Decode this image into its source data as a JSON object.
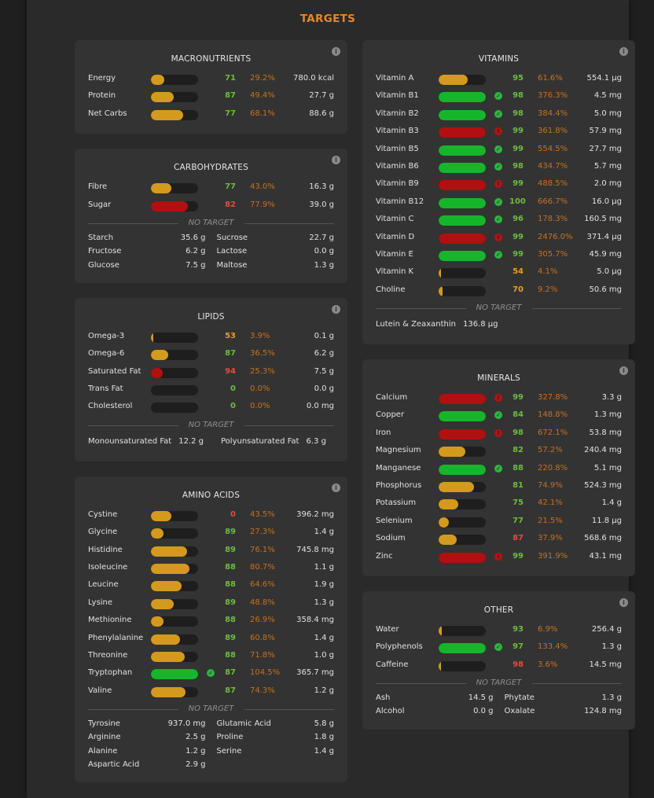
{
  "title": "TARGETS",
  "colors": {
    "accent": "#e3872b",
    "green": "#17b52c",
    "orange": "#d39a1e",
    "red": "#b01010"
  },
  "macronutrients": {
    "title": "MACRONUTRIENTS",
    "rows": [
      {
        "label": "Energy",
        "fill_percent": 29,
        "bar": "orange",
        "status": "none",
        "score": "71",
        "score_color": "green",
        "pct": "29.2%",
        "amount": "780.0 kcal"
      },
      {
        "label": "Protein",
        "fill_percent": 49,
        "bar": "orange",
        "status": "none",
        "score": "87",
        "score_color": "green",
        "pct": "49.4%",
        "amount": "27.7 g"
      },
      {
        "label": "Net Carbs",
        "fill_percent": 68,
        "bar": "orange",
        "status": "none",
        "score": "77",
        "score_color": "green",
        "pct": "68.1%",
        "amount": "88.6 g"
      }
    ]
  },
  "carbohydrates": {
    "title": "CARBOHYDRATES",
    "rows": [
      {
        "label": "Fibre",
        "fill_percent": 43,
        "bar": "orange",
        "status": "none",
        "score": "77",
        "score_color": "green",
        "pct": "43.0%",
        "amount": "16.3 g"
      },
      {
        "label": "Sugar",
        "fill_percent": 78,
        "bar": "red",
        "status": "none",
        "score": "82",
        "score_color": "red",
        "pct": "77.9%",
        "amount": "39.0 g"
      }
    ],
    "no_target_label": "NO TARGET",
    "no_target": [
      {
        "label": "Starch",
        "value": "35.6 g"
      },
      {
        "label": "Sucrose",
        "value": "22.7 g"
      },
      {
        "label": "Fructose",
        "value": "6.2 g"
      },
      {
        "label": "Lactose",
        "value": "0.0 g"
      },
      {
        "label": "Glucose",
        "value": "7.5 g"
      },
      {
        "label": "Maltose",
        "value": "1.3 g"
      }
    ]
  },
  "lipids": {
    "title": "LIPIDS",
    "rows": [
      {
        "label": "Omega-3",
        "fill_percent": 4,
        "bar": "orange",
        "status": "none",
        "score": "53",
        "score_color": "orange",
        "pct": "3.9%",
        "amount": "0.1 g"
      },
      {
        "label": "Omega-6",
        "fill_percent": 37,
        "bar": "orange",
        "status": "none",
        "score": "87",
        "score_color": "green",
        "pct": "36.5%",
        "amount": "6.2 g"
      },
      {
        "label": "Saturated Fat",
        "fill_percent": 25,
        "bar": "red",
        "status": "none",
        "score": "94",
        "score_color": "red",
        "pct": "25.3%",
        "amount": "7.5 g"
      },
      {
        "label": "Trans Fat",
        "fill_percent": 0,
        "bar": "orange",
        "status": "none",
        "score": "0",
        "score_color": "green",
        "pct": "0.0%",
        "amount": "0.0 g"
      },
      {
        "label": "Cholesterol",
        "fill_percent": 0,
        "bar": "orange",
        "status": "none",
        "score": "0",
        "score_color": "green",
        "pct": "0.0%",
        "amount": "0.0 mg"
      }
    ],
    "no_target_label": "NO TARGET",
    "no_target": [
      {
        "label": "Monounsaturated Fat",
        "value": "12.2 g"
      },
      {
        "label": "Polyunsaturated Fat",
        "value": "6.3 g"
      }
    ]
  },
  "amino_acids": {
    "title": "AMINO ACIDS",
    "rows": [
      {
        "label": "Cystine",
        "fill_percent": 43,
        "bar": "orange",
        "status": "none",
        "score": "0",
        "score_color": "red",
        "pct": "43.5%",
        "amount": "396.2 mg"
      },
      {
        "label": "Glycine",
        "fill_percent": 27,
        "bar": "orange",
        "status": "none",
        "score": "89",
        "score_color": "green",
        "pct": "27.3%",
        "amount": "1.4 g"
      },
      {
        "label": "Histidine",
        "fill_percent": 76,
        "bar": "orange",
        "status": "none",
        "score": "89",
        "score_color": "green",
        "pct": "76.1%",
        "amount": "745.8 mg"
      },
      {
        "label": "Isoleucine",
        "fill_percent": 81,
        "bar": "orange",
        "status": "none",
        "score": "88",
        "score_color": "green",
        "pct": "80.7%",
        "amount": "1.1 g"
      },
      {
        "label": "Leucine",
        "fill_percent": 65,
        "bar": "orange",
        "status": "none",
        "score": "88",
        "score_color": "green",
        "pct": "64.6%",
        "amount": "1.9 g"
      },
      {
        "label": "Lysine",
        "fill_percent": 49,
        "bar": "orange",
        "status": "none",
        "score": "89",
        "score_color": "green",
        "pct": "48.8%",
        "amount": "1.3 g"
      },
      {
        "label": "Methionine",
        "fill_percent": 27,
        "bar": "orange",
        "status": "none",
        "score": "88",
        "score_color": "green",
        "pct": "26.9%",
        "amount": "358.4 mg"
      },
      {
        "label": "Phenylalanine",
        "fill_percent": 61,
        "bar": "orange",
        "status": "none",
        "score": "89",
        "score_color": "green",
        "pct": "60.8%",
        "amount": "1.4 g"
      },
      {
        "label": "Threonine",
        "fill_percent": 72,
        "bar": "orange",
        "status": "none",
        "score": "88",
        "score_color": "green",
        "pct": "71.8%",
        "amount": "1.0 g"
      },
      {
        "label": "Tryptophan",
        "fill_percent": 100,
        "bar": "green",
        "status": "green",
        "score": "87",
        "score_color": "green",
        "pct": "104.5%",
        "amount": "365.7 mg"
      },
      {
        "label": "Valine",
        "fill_percent": 74,
        "bar": "orange",
        "status": "none",
        "score": "87",
        "score_color": "green",
        "pct": "74.3%",
        "amount": "1.2 g"
      }
    ],
    "no_target_label": "NO TARGET",
    "no_target": [
      {
        "label": "Tyrosine",
        "value": "937.0 mg"
      },
      {
        "label": "Glutamic Acid",
        "value": "5.8 g"
      },
      {
        "label": "Arginine",
        "value": "2.5 g"
      },
      {
        "label": "Proline",
        "value": "1.8 g"
      },
      {
        "label": "Alanine",
        "value": "1.2 g"
      },
      {
        "label": "Serine",
        "value": "1.4 g"
      },
      {
        "label": "Aspartic Acid",
        "value": "2.9 g"
      }
    ]
  },
  "vitamins": {
    "title": "VITAMINS",
    "rows": [
      {
        "label": "Vitamin A",
        "fill_percent": 62,
        "bar": "orange",
        "status": "none",
        "score": "95",
        "score_color": "green",
        "pct": "61.6%",
        "amount": "554.1 µg"
      },
      {
        "label": "Vitamin B1",
        "fill_percent": 100,
        "bar": "green",
        "status": "green",
        "score": "98",
        "score_color": "green",
        "pct": "376.3%",
        "amount": "4.5 mg"
      },
      {
        "label": "Vitamin B2",
        "fill_percent": 100,
        "bar": "green",
        "status": "green",
        "score": "98",
        "score_color": "green",
        "pct": "384.4%",
        "amount": "5.0 mg"
      },
      {
        "label": "Vitamin B3",
        "fill_percent": 100,
        "bar": "red",
        "status": "red",
        "score": "99",
        "score_color": "green",
        "pct": "361.8%",
        "amount": "57.9 mg"
      },
      {
        "label": "Vitamin B5",
        "fill_percent": 100,
        "bar": "green",
        "status": "green",
        "score": "99",
        "score_color": "green",
        "pct": "554.5%",
        "amount": "27.7 mg"
      },
      {
        "label": "Vitamin B6",
        "fill_percent": 100,
        "bar": "green",
        "status": "green",
        "score": "98",
        "score_color": "green",
        "pct": "434.7%",
        "amount": "5.7 mg"
      },
      {
        "label": "Vitamin B9",
        "fill_percent": 100,
        "bar": "red",
        "status": "red",
        "score": "99",
        "score_color": "green",
        "pct": "488.5%",
        "amount": "2.0 mg"
      },
      {
        "label": "Vitamin B12",
        "fill_percent": 100,
        "bar": "green",
        "status": "green",
        "score": "100",
        "score_color": "green",
        "pct": "666.7%",
        "amount": "16.0 µg"
      },
      {
        "label": "Vitamin C",
        "fill_percent": 100,
        "bar": "green",
        "status": "green",
        "score": "96",
        "score_color": "green",
        "pct": "178.3%",
        "amount": "160.5 mg"
      },
      {
        "label": "Vitamin D",
        "fill_percent": 100,
        "bar": "red",
        "status": "red",
        "score": "99",
        "score_color": "green",
        "pct": "2476.0%",
        "amount": "371.4 µg"
      },
      {
        "label": "Vitamin E",
        "fill_percent": 100,
        "bar": "green",
        "status": "green",
        "score": "99",
        "score_color": "green",
        "pct": "305.7%",
        "amount": "45.9 mg"
      },
      {
        "label": "Vitamin K",
        "fill_percent": 4,
        "bar": "orange",
        "status": "none",
        "score": "54",
        "score_color": "orange",
        "pct": "4.1%",
        "amount": "5.0 µg"
      },
      {
        "label": "Choline",
        "fill_percent": 9,
        "bar": "orange",
        "status": "none",
        "score": "70",
        "score_color": "orange",
        "pct": "9.2%",
        "amount": "50.6 mg"
      }
    ],
    "no_target_label": "NO TARGET",
    "no_target": [
      {
        "label": "Lutein & Zeaxanthin",
        "value": "136.8 µg"
      }
    ]
  },
  "minerals": {
    "title": "MINERALS",
    "rows": [
      {
        "label": "Calcium",
        "fill_percent": 100,
        "bar": "red",
        "status": "red",
        "score": "99",
        "score_color": "green",
        "pct": "327.8%",
        "amount": "3.3 g"
      },
      {
        "label": "Copper",
        "fill_percent": 100,
        "bar": "green",
        "status": "green",
        "score": "84",
        "score_color": "green",
        "pct": "148.8%",
        "amount": "1.3 mg"
      },
      {
        "label": "Iron",
        "fill_percent": 100,
        "bar": "red",
        "status": "red",
        "score": "98",
        "score_color": "green",
        "pct": "672.1%",
        "amount": "53.8 mg"
      },
      {
        "label": "Magnesium",
        "fill_percent": 57,
        "bar": "orange",
        "status": "none",
        "score": "82",
        "score_color": "green",
        "pct": "57.2%",
        "amount": "240.4 mg"
      },
      {
        "label": "Manganese",
        "fill_percent": 100,
        "bar": "green",
        "status": "green",
        "score": "88",
        "score_color": "green",
        "pct": "220.8%",
        "amount": "5.1 mg"
      },
      {
        "label": "Phosphorus",
        "fill_percent": 75,
        "bar": "orange",
        "status": "none",
        "score": "81",
        "score_color": "green",
        "pct": "74.9%",
        "amount": "524.3 mg"
      },
      {
        "label": "Potassium",
        "fill_percent": 42,
        "bar": "orange",
        "status": "none",
        "score": "75",
        "score_color": "green",
        "pct": "42.1%",
        "amount": "1.4 g"
      },
      {
        "label": "Selenium",
        "fill_percent": 22,
        "bar": "orange",
        "status": "none",
        "score": "77",
        "score_color": "green",
        "pct": "21.5%",
        "amount": "11.8 µg"
      },
      {
        "label": "Sodium",
        "fill_percent": 38,
        "bar": "orange",
        "status": "none",
        "score": "87",
        "score_color": "red",
        "pct": "37.9%",
        "amount": "568.6 mg"
      },
      {
        "label": "Zinc",
        "fill_percent": 100,
        "bar": "red",
        "status": "red",
        "score": "99",
        "score_color": "green",
        "pct": "391.9%",
        "amount": "43.1 mg"
      }
    ]
  },
  "other": {
    "title": "OTHER",
    "rows": [
      {
        "label": "Water",
        "fill_percent": 7,
        "bar": "orange",
        "status": "none",
        "score": "93",
        "score_color": "green",
        "pct": "6.9%",
        "amount": "256.4 g"
      },
      {
        "label": "Polyphenols",
        "fill_percent": 100,
        "bar": "green",
        "status": "green",
        "score": "97",
        "score_color": "green",
        "pct": "133.4%",
        "amount": "1.3 g"
      },
      {
        "label": "Caffeine",
        "fill_percent": 4,
        "bar": "orange",
        "status": "none",
        "score": "98",
        "score_color": "red",
        "pct": "3.6%",
        "amount": "14.5 mg"
      }
    ],
    "no_target_label": "NO TARGET",
    "no_target": [
      {
        "label": "Ash",
        "value": "14.5 g"
      },
      {
        "label": "Phytate",
        "value": "1.3 g"
      },
      {
        "label": "Alcohol",
        "value": "0.0 g"
      },
      {
        "label": "Oxalate",
        "value": "124.8 mg"
      }
    ]
  }
}
